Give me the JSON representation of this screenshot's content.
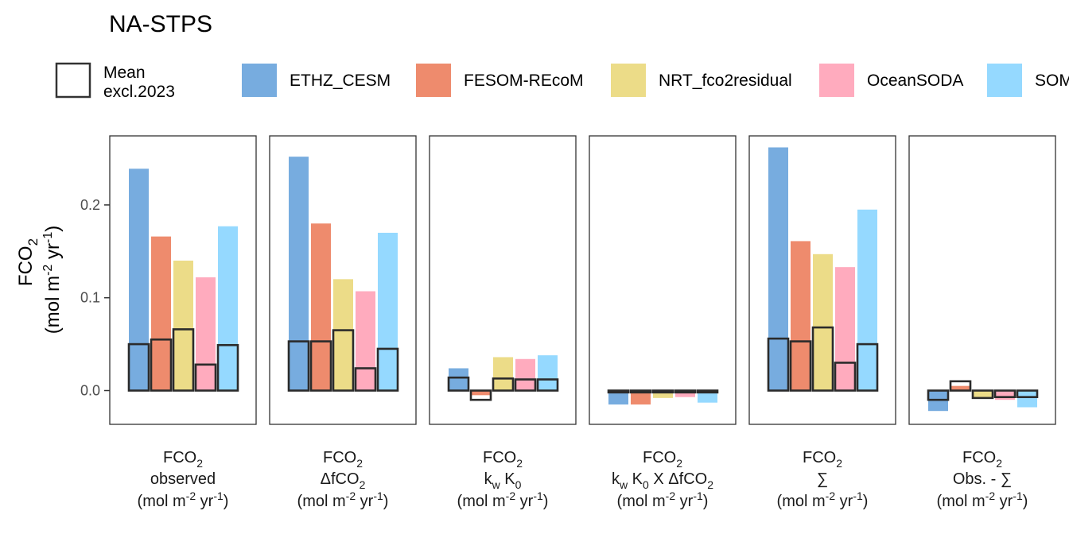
{
  "chart_data": {
    "type": "bar",
    "title": "NA-STPS",
    "ylabel": {
      "main": "FCO",
      "main_sub": "2",
      "unit_parts": [
        "(mol m",
        "-2",
        " yr",
        "-1",
        ")"
      ]
    },
    "y_ticks": [
      "0.0",
      "0.1",
      "0.2"
    ],
    "y_tick_values": [
      0.0,
      0.1,
      0.2
    ],
    "ylim": [
      -0.04,
      0.275
    ],
    "legend": {
      "placement": "top",
      "mean_label_line1": "Mean",
      "mean_label_line2": "excl.2023",
      "entries": [
        {
          "name": "ETHZ_CESM",
          "color": "#4a90d4"
        },
        {
          "name": "FESOM-REcoM",
          "color": "#e8643c"
        },
        {
          "name": "NRT_fco2residual",
          "color": "#e6d060"
        },
        {
          "name": "OceanSODA",
          "color": "#ff8fa8"
        },
        {
          "name": "SOM",
          "color": "#72ccff"
        }
      ]
    },
    "panels": [
      {
        "label": {
          "top": "FCO",
          "top_sub": "2",
          "middle": "observed",
          "unit_parts": [
            "(mol m",
            "-2",
            " yr",
            "-1",
            ")"
          ]
        },
        "values": [
          0.239,
          0.166,
          0.14,
          0.122,
          0.177
        ],
        "mean_excl_2023": [
          0.05,
          0.055,
          0.066,
          0.028,
          0.049
        ]
      },
      {
        "label": {
          "top": "FCO",
          "top_sub": "2",
          "middle_parts": [
            "ΔfCO",
            "2"
          ],
          "unit_parts": [
            "(mol m",
            "-2",
            " yr",
            "-1",
            ")"
          ]
        },
        "values": [
          0.252,
          0.18,
          0.12,
          0.107,
          0.17
        ],
        "mean_excl_2023": [
          0.053,
          0.053,
          0.065,
          0.024,
          0.045
        ]
      },
      {
        "label": {
          "top": "FCO",
          "top_sub": "2",
          "middle_parts": [
            "k",
            "w",
            " K",
            "0"
          ],
          "unit_parts": [
            "(mol m",
            "-2",
            " yr",
            "-1",
            ")"
          ]
        },
        "values": [
          0.024,
          -0.005,
          0.036,
          0.034,
          0.038
        ],
        "mean_excl_2023": [
          0.014,
          -0.01,
          0.013,
          0.012,
          0.012
        ]
      },
      {
        "label": {
          "top": "FCO",
          "top_sub": "2",
          "middle_parts": [
            "k",
            "w",
            " K",
            "0",
            " X ΔfCO",
            "2"
          ],
          "unit_parts": [
            "(mol m",
            "-2",
            " yr",
            "-1",
            ")"
          ]
        },
        "values": [
          -0.015,
          -0.015,
          -0.008,
          -0.007,
          -0.013
        ],
        "mean_excl_2023": [
          -0.002,
          -0.002,
          -0.002,
          -0.002,
          -0.002
        ]
      },
      {
        "label": {
          "top": "FCO",
          "top_sub": "2",
          "middle": "∑",
          "unit_parts": [
            "(mol m",
            "-2",
            " yr",
            "-1",
            ")"
          ]
        },
        "values": [
          0.262,
          0.161,
          0.147,
          0.133,
          0.195
        ],
        "mean_excl_2023": [
          0.056,
          0.053,
          0.068,
          0.03,
          0.05
        ]
      },
      {
        "label": {
          "top": "FCO",
          "top_sub": "2",
          "middle": "Obs. - ∑",
          "unit_parts": [
            "(mol m",
            "-2",
            " yr",
            "-1",
            ")"
          ]
        },
        "values": [
          -0.022,
          0.005,
          -0.007,
          -0.01,
          -0.018
        ],
        "mean_excl_2023": [
          -0.01,
          0.01,
          -0.008,
          -0.007,
          -0.007
        ]
      }
    ]
  }
}
